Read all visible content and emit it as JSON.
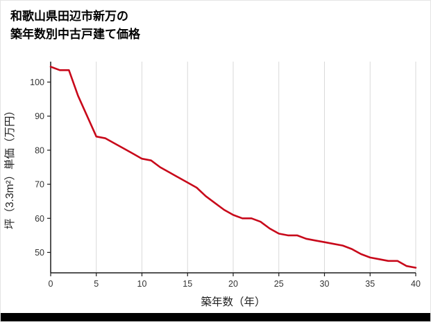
{
  "page": {
    "title_line1": "和歌山県田辺市新万の",
    "title_line2": "築年数別中古戸建て価格"
  },
  "chart_data": {
    "type": "line",
    "title": "和歌山県田辺市新万の築年数別中古戸建て価格",
    "xlabel": "築年数（年）",
    "ylabel": "坪（3.3m²）単価（万円）",
    "x": [
      0,
      1,
      2,
      3,
      4,
      5,
      6,
      7,
      8,
      9,
      10,
      11,
      12,
      13,
      14,
      15,
      16,
      17,
      18,
      19,
      20,
      21,
      22,
      23,
      24,
      25,
      26,
      27,
      28,
      29,
      30,
      31,
      32,
      33,
      34,
      35,
      36,
      37,
      38,
      39,
      40
    ],
    "values": [
      104.5,
      103.5,
      103.5,
      96,
      90,
      84,
      83.5,
      82,
      80.5,
      79,
      77.5,
      77,
      75,
      73.5,
      72,
      70.5,
      69,
      66.5,
      64.5,
      62.5,
      61,
      60,
      60,
      59,
      57,
      55.5,
      55,
      55,
      54,
      53.5,
      53,
      52.5,
      52,
      51,
      49.5,
      48.5,
      48,
      47.5,
      47.5,
      46,
      45.5
    ],
    "xlim": [
      0,
      40
    ],
    "ylim": [
      44,
      106
    ],
    "x_ticks": [
      0,
      5,
      10,
      15,
      20,
      25,
      30,
      35,
      40
    ],
    "y_ticks": [
      50,
      60,
      70,
      80,
      90,
      100
    ],
    "grid": "vertical-only",
    "legend": "none",
    "line_color": "#c8081a",
    "grid_color": "#d9d9d9",
    "axis_color": "#1a1a1a",
    "tick_label_color": "#333333",
    "axis_title_color": "#222222"
  }
}
